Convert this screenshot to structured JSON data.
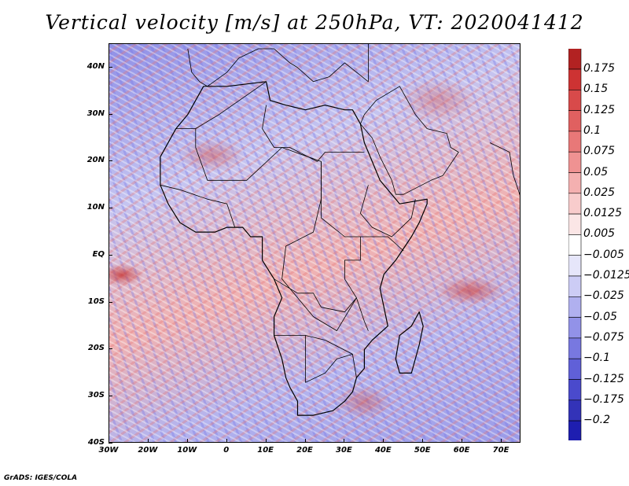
{
  "title": "Vertical velocity [m/s] at 250hPa, VT: 2020041412",
  "credit": "GrADS: IGES/COLA",
  "map": {
    "variable": "Vertical velocity",
    "units": "m/s",
    "level": "250hPa",
    "valid_time": "2020041412",
    "lon_range": [
      -30,
      75
    ],
    "lat_range": [
      -40,
      45
    ],
    "lat_ticks": [
      {
        "value": 40,
        "label": "40N"
      },
      {
        "value": 30,
        "label": "30N"
      },
      {
        "value": 20,
        "label": "20N"
      },
      {
        "value": 10,
        "label": "10N"
      },
      {
        "value": 0,
        "label": "EQ"
      },
      {
        "value": -10,
        "label": "10S"
      },
      {
        "value": -20,
        "label": "20S"
      },
      {
        "value": -30,
        "label": "30S"
      },
      {
        "value": -40,
        "label": "40S"
      }
    ],
    "lon_ticks": [
      {
        "value": -30,
        "label": "30W"
      },
      {
        "value": -20,
        "label": "20W"
      },
      {
        "value": -10,
        "label": "10W"
      },
      {
        "value": 0,
        "label": "0"
      },
      {
        "value": 10,
        "label": "10E"
      },
      {
        "value": 20,
        "label": "20E"
      },
      {
        "value": 30,
        "label": "30E"
      },
      {
        "value": 40,
        "label": "40E"
      },
      {
        "value": 50,
        "label": "50E"
      },
      {
        "value": 60,
        "label": "60E"
      },
      {
        "value": 70,
        "label": "70E"
      }
    ],
    "coastline": [
      [
        -17,
        15
      ],
      [
        -17,
        21
      ],
      [
        -13,
        27
      ],
      [
        -10,
        30
      ],
      [
        -8,
        33
      ],
      [
        -6,
        36
      ],
      [
        0,
        36
      ],
      [
        10,
        37
      ],
      [
        11,
        33
      ],
      [
        15,
        32
      ],
      [
        20,
        31
      ],
      [
        25,
        32
      ],
      [
        30,
        31
      ],
      [
        32,
        31
      ],
      [
        34,
        28
      ],
      [
        35,
        24
      ],
      [
        37,
        20
      ],
      [
        39,
        16
      ],
      [
        42,
        13
      ],
      [
        44,
        11
      ],
      [
        51,
        12
      ],
      [
        51,
        11
      ],
      [
        49,
        7
      ],
      [
        47,
        4
      ],
      [
        43,
        -1
      ],
      [
        40,
        -4
      ],
      [
        39,
        -7
      ],
      [
        40,
        -11
      ],
      [
        41,
        -15
      ],
      [
        37,
        -18
      ],
      [
        35,
        -20
      ],
      [
        35,
        -24
      ],
      [
        33,
        -26
      ],
      [
        32,
        -29
      ],
      [
        30,
        -31
      ],
      [
        27,
        -33
      ],
      [
        22,
        -34
      ],
      [
        18,
        -34
      ],
      [
        18,
        -31
      ],
      [
        16,
        -28
      ],
      [
        15,
        -26
      ],
      [
        14,
        -22
      ],
      [
        12,
        -17
      ],
      [
        12,
        -13
      ],
      [
        14,
        -9
      ],
      [
        12,
        -5
      ],
      [
        9,
        -1
      ],
      [
        9,
        4
      ],
      [
        6,
        4
      ],
      [
        4,
        6
      ],
      [
        0,
        6
      ],
      [
        -3,
        5
      ],
      [
        -8,
        5
      ],
      [
        -12,
        7
      ],
      [
        -15,
        11
      ],
      [
        -17,
        15
      ]
    ],
    "madagascar": [
      [
        49,
        -12
      ],
      [
        50,
        -15
      ],
      [
        49,
        -19
      ],
      [
        47,
        -25
      ],
      [
        44,
        -25
      ],
      [
        43,
        -22
      ],
      [
        44,
        -17
      ],
      [
        47,
        -15
      ],
      [
        49,
        -12
      ]
    ],
    "arabia": [
      [
        34,
        28
      ],
      [
        35,
        30
      ],
      [
        38,
        33
      ],
      [
        44,
        36
      ],
      [
        48,
        30
      ],
      [
        51,
        27
      ],
      [
        56,
        26
      ],
      [
        57,
        23
      ],
      [
        59,
        22
      ],
      [
        55,
        17
      ],
      [
        52,
        16
      ],
      [
        45,
        13
      ],
      [
        43,
        13
      ],
      [
        42,
        16
      ],
      [
        39,
        21
      ],
      [
        37,
        25
      ],
      [
        34,
        28
      ]
    ],
    "india": [
      [
        67,
        24
      ],
      [
        72,
        22
      ],
      [
        73,
        17
      ],
      [
        75,
        12
      ],
      [
        75,
        10
      ],
      [
        75,
        45
      ]
    ],
    "europe": [
      [
        -10,
        44
      ],
      [
        -9,
        39
      ],
      [
        -7,
        37
      ],
      [
        -5,
        36
      ],
      [
        0,
        39
      ],
      [
        3,
        42
      ],
      [
        8,
        44
      ],
      [
        12,
        44
      ],
      [
        16,
        41
      ],
      [
        18,
        40
      ],
      [
        22,
        37
      ],
      [
        26,
        38
      ],
      [
        30,
        41
      ],
      [
        36,
        37
      ],
      [
        36,
        45
      ]
    ],
    "borders": [
      [
        [
          -8,
          27
        ],
        [
          -2,
          30
        ],
        [
          10,
          37
        ]
      ],
      [
        [
          -13,
          27
        ],
        [
          -8,
          27
        ],
        [
          -8,
          23
        ],
        [
          -5,
          16
        ],
        [
          5,
          16
        ],
        [
          14,
          23
        ],
        [
          24,
          20
        ],
        [
          24,
          12
        ],
        [
          22,
          5
        ],
        [
          15,
          2
        ],
        [
          14,
          -5
        ],
        [
          22,
          -13
        ],
        [
          28,
          -16
        ],
        [
          33,
          -9
        ]
      ],
      [
        [
          10,
          32
        ],
        [
          9,
          27
        ],
        [
          12,
          23
        ],
        [
          16,
          23
        ],
        [
          23,
          20
        ],
        [
          25,
          22
        ],
        [
          35,
          22
        ]
      ],
      [
        [
          -17,
          15
        ],
        [
          -12,
          14
        ],
        [
          -5,
          12
        ],
        [
          0,
          11
        ],
        [
          2,
          6
        ]
      ],
      [
        [
          24,
          20
        ],
        [
          24,
          8
        ],
        [
          30,
          4
        ],
        [
          35,
          4
        ],
        [
          41,
          4
        ],
        [
          45,
          1
        ]
      ],
      [
        [
          33,
          -9
        ],
        [
          30,
          -5
        ],
        [
          30,
          -1
        ],
        [
          34,
          -1
        ],
        [
          34,
          4
        ]
      ],
      [
        [
          12,
          -17
        ],
        [
          20,
          -17
        ],
        [
          25,
          -18
        ],
        [
          32,
          -21
        ],
        [
          33,
          -26
        ]
      ],
      [
        [
          20,
          -17
        ],
        [
          20,
          -27
        ],
        [
          25,
          -25
        ],
        [
          28,
          -22
        ],
        [
          32,
          -21
        ]
      ],
      [
        [
          36,
          15
        ],
        [
          34,
          9
        ],
        [
          37,
          6
        ],
        [
          42,
          4
        ],
        [
          47,
          8
        ],
        [
          48,
          12
        ]
      ],
      [
        [
          12,
          -5
        ],
        [
          18,
          -8
        ],
        [
          22,
          -8
        ],
        [
          24,
          -11
        ],
        [
          30,
          -12
        ],
        [
          33,
          -9
        ],
        [
          35,
          -14
        ],
        [
          36,
          -16
        ]
      ]
    ]
  },
  "colorbar": {
    "labels": [
      "0.175",
      "0.15",
      "0.125",
      "0.1",
      "0.075",
      "0.05",
      "0.025",
      "0.0125",
      "0.005",
      "−0.005",
      "−0.0125",
      "−0.025",
      "−0.05",
      "−0.075",
      "−0.1",
      "−0.125",
      "−0.175",
      "−0.2"
    ],
    "colors": [
      "#b22222",
      "#cd3333",
      "#d84a4a",
      "#e06060",
      "#e87878",
      "#ef9292",
      "#f4b0b0",
      "#f8cccc",
      "#fbe6e6",
      "#ffffff",
      "#e6e6fa",
      "#ccccf5",
      "#b0b0ef",
      "#9292e8",
      "#7878e0",
      "#6060d8",
      "#4a4acc",
      "#3333b8",
      "#1e1eb0"
    ],
    "top_arrow_color": "#8b1a1a",
    "bottom_arrow_color": "#1a1a8b"
  }
}
